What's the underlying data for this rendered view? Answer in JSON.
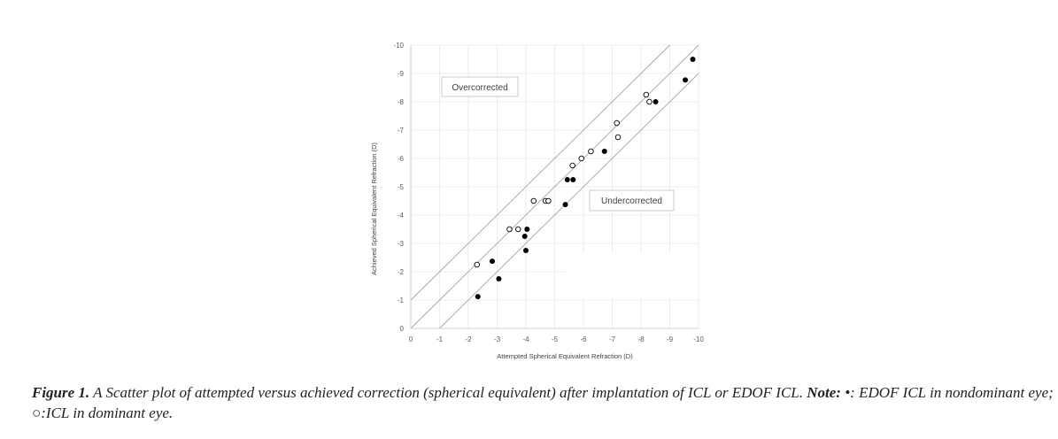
{
  "chart_data": {
    "type": "scatter",
    "title": "",
    "xlabel": "Attempted Spherical Equivalent Refraction (D)",
    "ylabel": "Achieved Spherical Equivalent Refraction (D)",
    "xlim": [
      0,
      -10
    ],
    "ylim": [
      0,
      -10
    ],
    "x_ticks": [
      "0",
      "-1",
      "-2",
      "-3",
      "-4",
      "-5",
      "-6",
      "-7",
      "-8",
      "-9",
      "-10"
    ],
    "y_ticks": [
      "0",
      "-1",
      "-2",
      "-3",
      "-4",
      "-5",
      "-6",
      "-7",
      "-8",
      "-9",
      "-10"
    ],
    "grid": true,
    "annotations": [
      "Overcorrected",
      "Undercorrected"
    ],
    "reference_lines": [
      {
        "name": "y = x - 1",
        "from": [
          0,
          -1
        ],
        "to": [
          -9,
          -10
        ]
      },
      {
        "name": "y = x",
        "from": [
          0,
          0
        ],
        "to": [
          -10,
          -10
        ]
      },
      {
        "name": "y = x + 1",
        "from": [
          -1,
          0
        ],
        "to": [
          -10,
          -9
        ]
      }
    ],
    "series": [
      {
        "name": "EDOF ICL in nondominant eye",
        "marker": "filled",
        "color": "#000000",
        "points": [
          [
            -2.33,
            -1.12
          ],
          [
            -3.06,
            -1.75
          ],
          [
            -2.83,
            -2.37
          ],
          [
            -4.0,
            -2.75
          ],
          [
            -3.96,
            -3.25
          ],
          [
            -4.04,
            -3.5
          ],
          [
            -5.37,
            -4.37
          ],
          [
            -5.44,
            -5.25
          ],
          [
            -5.64,
            -5.25
          ],
          [
            -6.73,
            -6.25
          ],
          [
            -8.51,
            -8.0
          ],
          [
            -9.54,
            -8.77
          ],
          [
            -9.8,
            -9.5
          ]
        ]
      },
      {
        "name": "ICL in dominant eye",
        "marker": "open",
        "color": "#000000",
        "points": [
          [
            -2.3,
            -2.25
          ],
          [
            -3.43,
            -3.5
          ],
          [
            -3.73,
            -3.5
          ],
          [
            -4.27,
            -4.5
          ],
          [
            -4.68,
            -4.5
          ],
          [
            -4.78,
            -4.5
          ],
          [
            -5.62,
            -5.75
          ],
          [
            -5.93,
            -6.0
          ],
          [
            -6.26,
            -6.25
          ],
          [
            -7.16,
            -7.25
          ],
          [
            -7.2,
            -6.75
          ],
          [
            -8.18,
            -8.25
          ],
          [
            -8.29,
            -8.0
          ]
        ]
      }
    ]
  },
  "caption": {
    "label": "Figure 1.",
    "text": " A Scatter plot of attempted versus achieved correction (spherical equivalent) after implantation of ICL or EDOF ICL. ",
    "note_label": "Note:",
    "note_text": " •: EDOF ICL in nondominant eye; ○:ICL in dominant eye."
  }
}
